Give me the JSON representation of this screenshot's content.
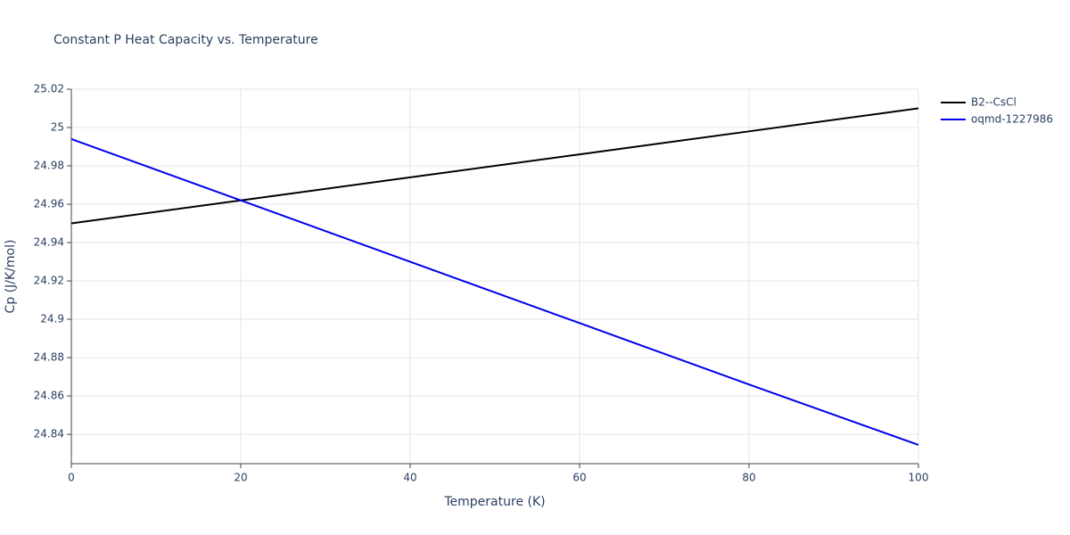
{
  "chart_data": {
    "type": "line",
    "title": "Constant P Heat Capacity vs. Temperature",
    "x_label": "Temperature (K)",
    "y_label": "Cp (J/K/mol)",
    "x": [
      0,
      20,
      40,
      60,
      80,
      100
    ],
    "series": [
      {
        "name": "B2--CsCl",
        "color": "#000000",
        "values": [
          24.95,
          24.962,
          24.974,
          24.986,
          24.998,
          25.01
        ]
      },
      {
        "name": "oqmd-1227986",
        "color": "#0000ee",
        "values": [
          24.994,
          24.962,
          24.93,
          24.898,
          24.866,
          24.8345
        ]
      }
    ],
    "xlim": [
      0,
      100
    ],
    "xticks": [
      0,
      20,
      40,
      60,
      80,
      100
    ],
    "ylim": [
      24.8247,
      25.02
    ],
    "yticks": [
      24.84,
      24.86,
      24.88,
      24.9,
      24.92,
      24.94,
      24.96,
      24.98,
      25,
      25.02
    ],
    "grid": true,
    "legend": "outside-right"
  }
}
